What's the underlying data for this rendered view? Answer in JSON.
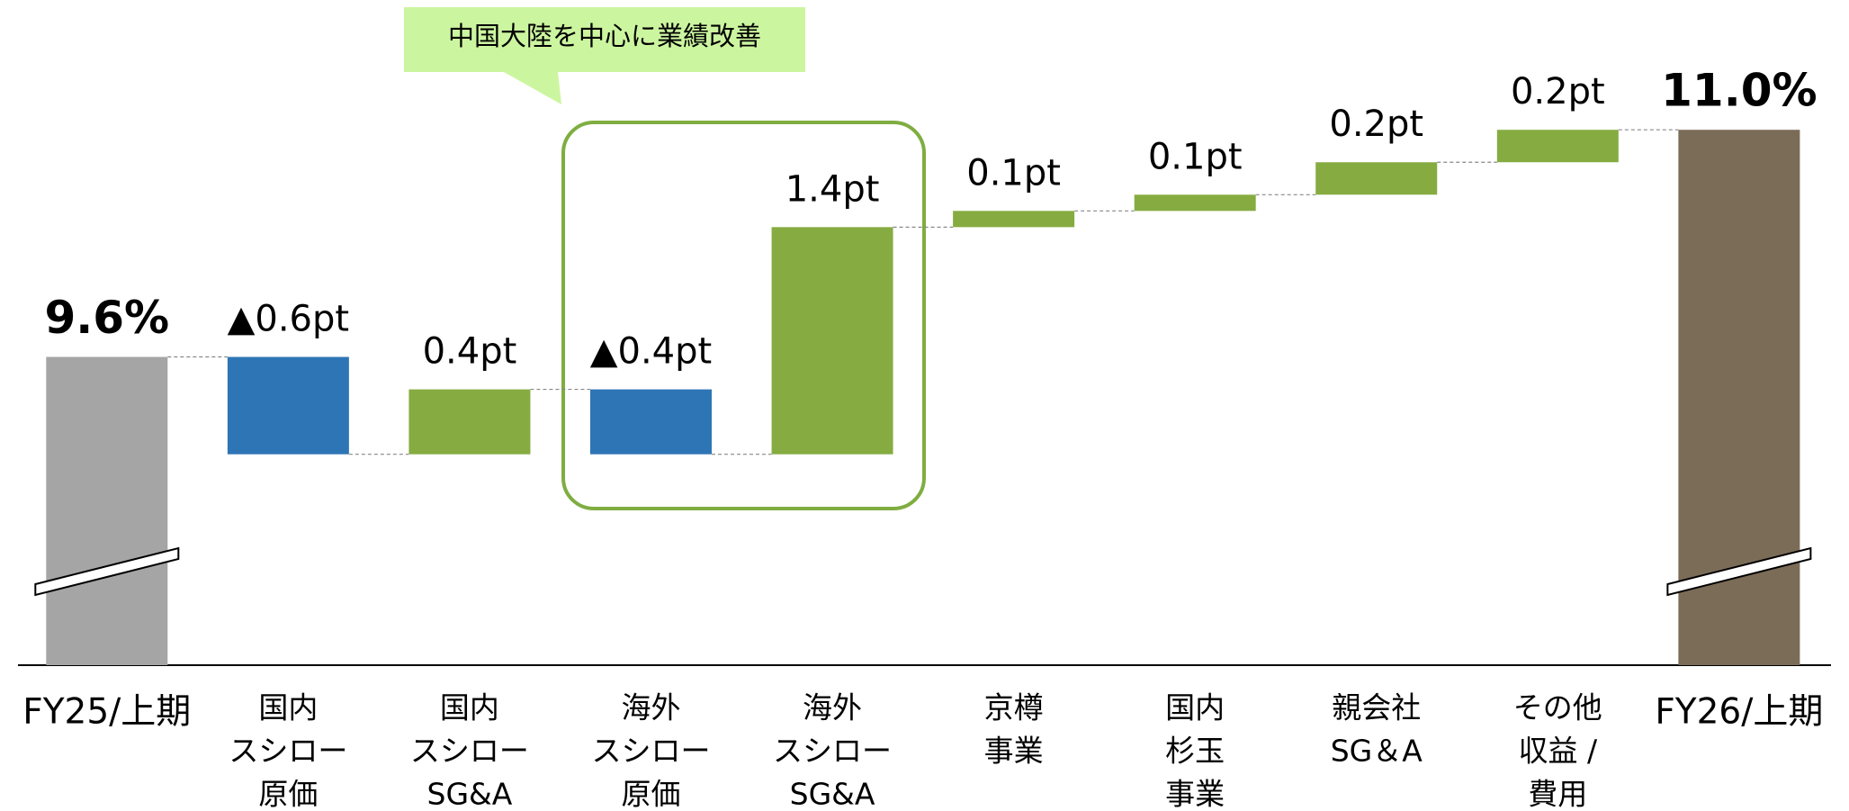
{
  "chart_data": {
    "type": "waterfall",
    "annotation": "中国大陸を中心に業績改善",
    "categories": [
      [
        "FY25/上期"
      ],
      [
        "国内",
        "スシロー",
        "原価"
      ],
      [
        "国内",
        "スシロー",
        "SG&A"
      ],
      [
        "海外",
        "スシロー",
        "原価"
      ],
      [
        "海外",
        "スシロー",
        "SG&A"
      ],
      [
        "京樽",
        "事業"
      ],
      [
        "国内",
        "杉玉",
        "事業"
      ],
      [
        "親会社",
        "SG＆A"
      ],
      [
        "その他",
        "収益 /",
        "費用"
      ],
      [
        "FY26/上期"
      ]
    ],
    "values": [
      9.6,
      -0.6,
      0.4,
      -0.4,
      1.4,
      0.1,
      0.1,
      0.2,
      0.2,
      11.0
    ],
    "value_labels": [
      "9.6%",
      "▲0.6pt",
      "0.4pt",
      "▲0.4pt",
      "1.4pt",
      "0.1pt",
      "0.1pt",
      "0.2pt",
      "0.2pt",
      "11.0%"
    ],
    "colors": [
      "#a5a5a5",
      "#2e75b6",
      "#86ac41",
      "#2e75b6",
      "#86ac41",
      "#86ac41",
      "#86ac41",
      "#86ac41",
      "#86ac41",
      "#7b6c58"
    ],
    "ylim": [
      7.7,
      11.8
    ]
  }
}
